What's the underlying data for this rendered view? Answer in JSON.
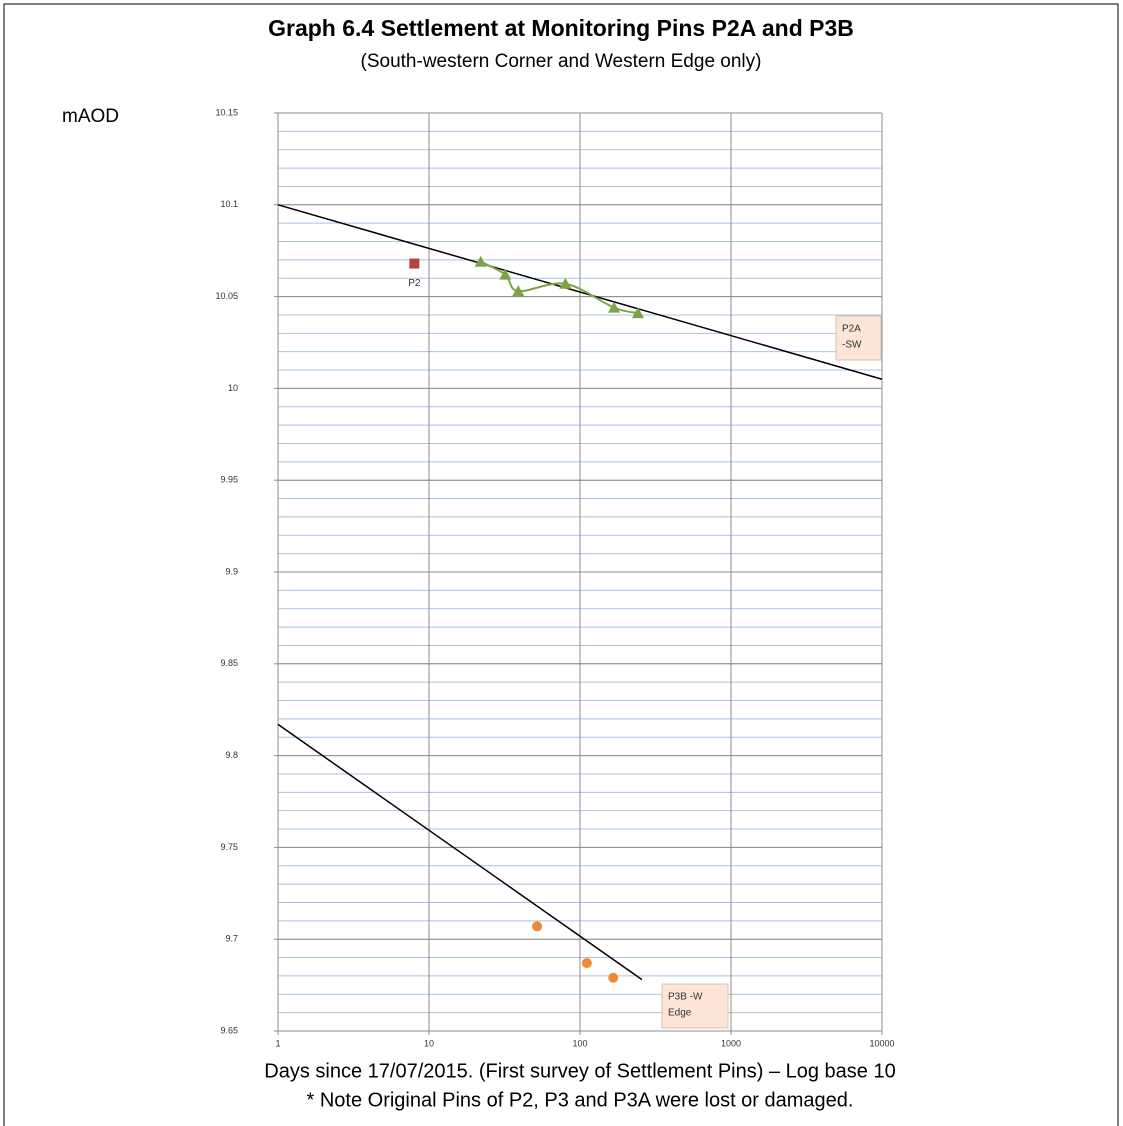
{
  "chart_data": {
    "type": "scatter",
    "title": "Graph 6.4    Settlement at Monitoring Pins P2A and P3B",
    "subtitle": "(South-western Corner and Western Edge only)",
    "y_label": "mAOD",
    "x_label": "Days since 17/07/2015. (First survey of Settlement Pins) – Log base 10",
    "note": "* Note Original Pins of P2, P3 and P3A were lost or damaged.",
    "x_log": true,
    "xlim": [
      1,
      10000
    ],
    "xticks": [
      1,
      10,
      100,
      1000,
      10000
    ],
    "ylim": [
      9.65,
      10.15
    ],
    "yticks": [
      10.15,
      10.1,
      10.05,
      10,
      9.95,
      9.9,
      9.85,
      9.8,
      9.75,
      9.7,
      9.65
    ],
    "y_minor_grid": 0.01,
    "grid": true,
    "series": [
      {
        "name": "P2",
        "color": "#b3443f",
        "marker": "square",
        "x": [
          8
        ],
        "values": [
          10.068
        ]
      },
      {
        "color": "#7ea346",
        "marker": "triangle",
        "smooth_line": true,
        "x": [
          22,
          32,
          39,
          80,
          168,
          242
        ],
        "values": [
          10.069,
          10.062,
          10.053,
          10.057,
          10.044,
          10.041
        ]
      },
      {
        "color": "#ed8a3a",
        "marker": "circle",
        "x": [
          52,
          111,
          166
        ],
        "values": [
          9.707,
          9.687,
          9.679
        ]
      }
    ],
    "trendlines": [
      {
        "color": "#000000",
        "x": [
          1,
          10000
        ],
        "values": [
          10.1,
          10.005
        ]
      },
      {
        "color": "#000000",
        "x": [
          1,
          257
        ],
        "values": [
          9.817,
          9.678
        ]
      }
    ],
    "annotations": [
      {
        "lines": [
          "P2A",
          "-SW"
        ]
      },
      {
        "lines": [
          "P3B -W",
          "Edge"
        ]
      }
    ]
  }
}
